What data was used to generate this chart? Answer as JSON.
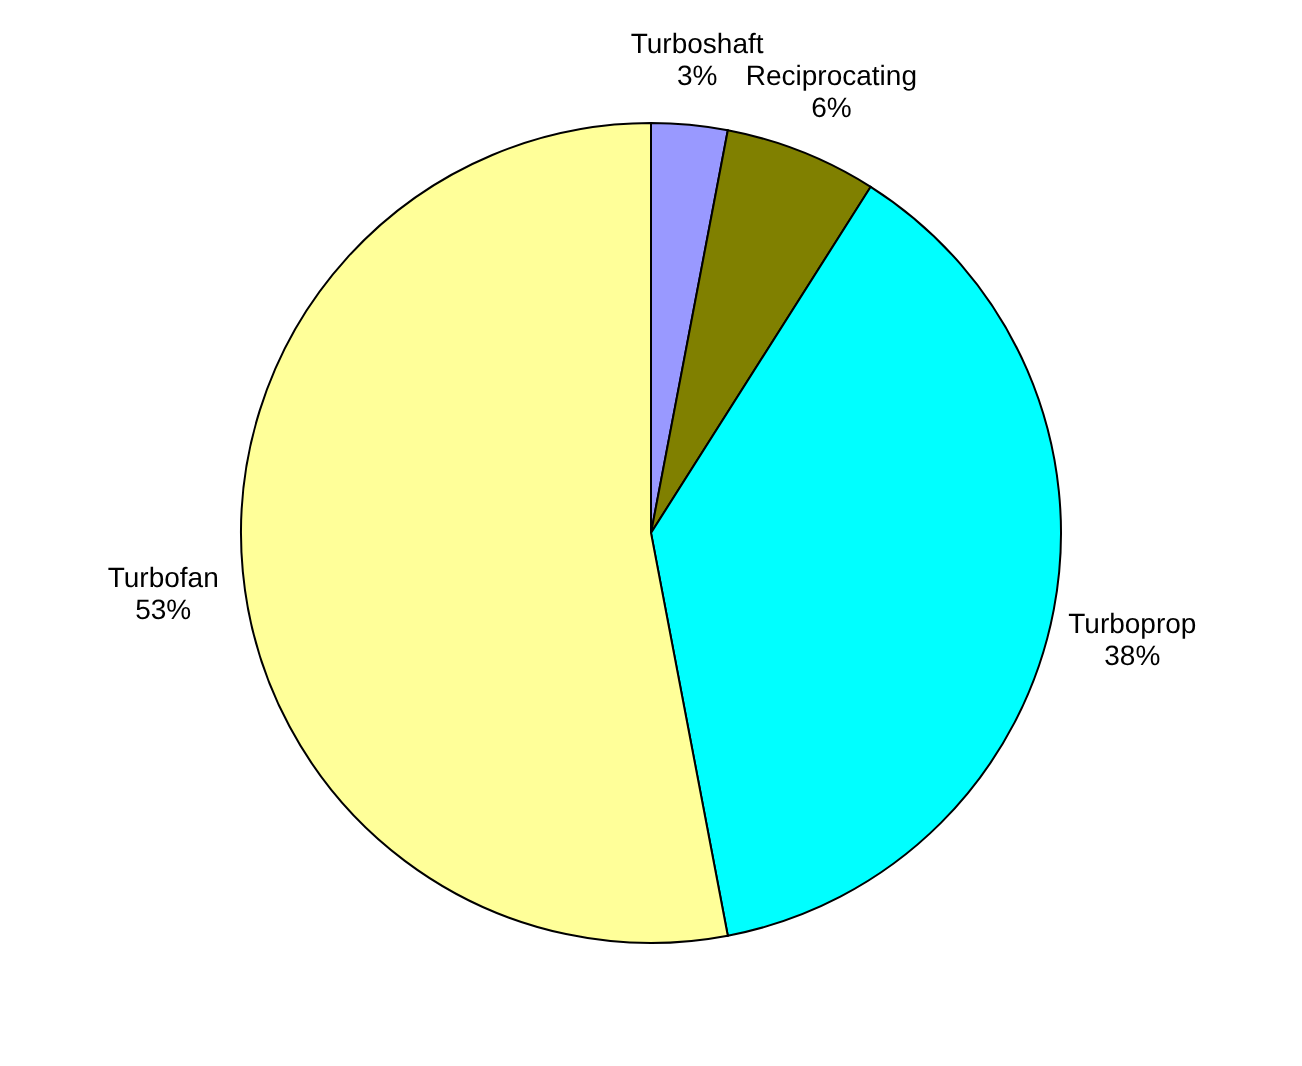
{
  "chart_data": {
    "type": "pie",
    "categories": [
      "Turboshaft",
      "Reciprocating",
      "Turboprop",
      "Turbofan"
    ],
    "values": [
      3,
      6,
      38,
      53
    ],
    "colors": [
      "#9999ff",
      "#808000",
      "#00ffff",
      "#ffff99"
    ],
    "value_labels": [
      "3%",
      "6%",
      "38%",
      "53%"
    ]
  }
}
